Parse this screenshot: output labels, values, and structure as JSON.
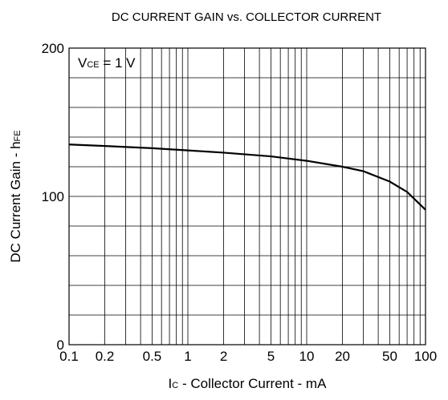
{
  "chart_data": {
    "type": "line",
    "title": "DC CURRENT GAIN vs. COLLECTOR CURRENT",
    "annotation": {
      "main": "V",
      "sub": "CE",
      "rest": " = 1 V"
    },
    "y_label": {
      "main": "DC Current Gain - h",
      "sub": "FE"
    },
    "x_label": {
      "main": "I",
      "sub": "C",
      "rest": " - Collector Current - mA"
    },
    "x_scale": "log",
    "xlim": [
      0.1,
      100
    ],
    "xticks": [
      0.1,
      0.2,
      0.5,
      1,
      2,
      5,
      10,
      20,
      50,
      100
    ],
    "xgrid": [
      0.1,
      0.2,
      0.3,
      0.4,
      0.5,
      0.6,
      0.7,
      0.8,
      0.9,
      1,
      2,
      3,
      4,
      5,
      6,
      7,
      8,
      9,
      10,
      20,
      30,
      40,
      50,
      60,
      70,
      80,
      90,
      100
    ],
    "ylim": [
      0,
      200
    ],
    "yticks": [
      0,
      100,
      200
    ],
    "ygrid": [
      0,
      20,
      40,
      60,
      80,
      100,
      120,
      140,
      160,
      180,
      200
    ],
    "grid": true,
    "x": [
      0.1,
      0.2,
      0.5,
      1,
      2,
      5,
      10,
      20,
      30,
      50,
      70,
      100
    ],
    "series": [
      {
        "name": "hFE",
        "color": "#000000",
        "values": [
          135,
          134,
          132.5,
          131,
          129.5,
          127,
          124,
          120,
          117,
          110,
          103,
          91
        ]
      }
    ]
  }
}
